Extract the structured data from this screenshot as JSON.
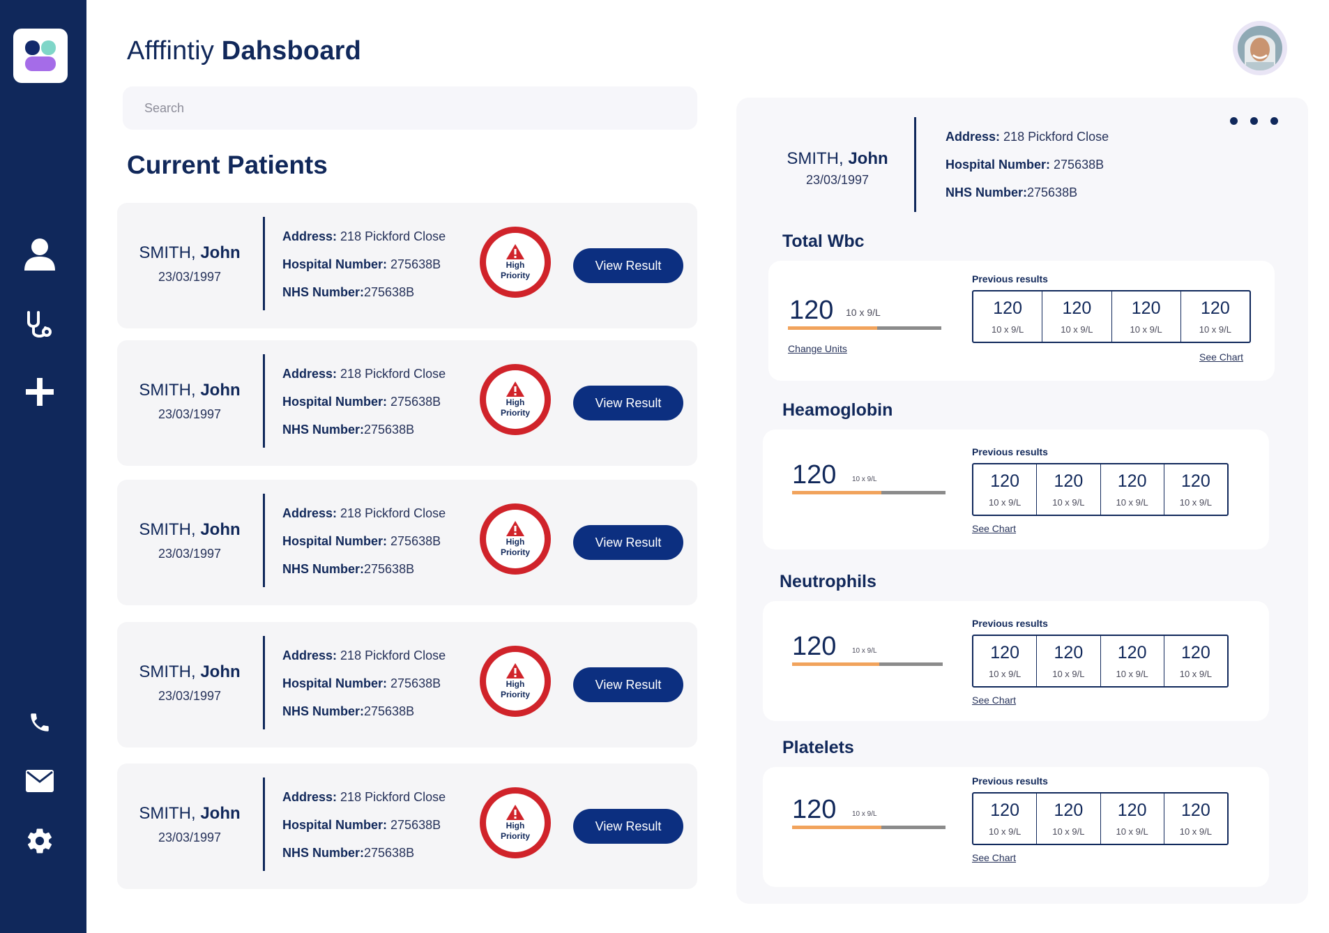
{
  "app": {
    "title_light": "Afffintiy",
    "title_bold": "Dahsboard"
  },
  "search": {
    "placeholder": "Search"
  },
  "patients_section": {
    "title": "Current Patients"
  },
  "patients": [
    {
      "last": "SMITH,",
      "first": "John",
      "dob": "23/03/1997",
      "address_label": "Address:",
      "address": "218 Pickford Close",
      "hospital_label": "Hospital Number:",
      "hospital": "275638B",
      "nhs_label": "NHS Number:",
      "nhs": "275638B",
      "priority_line1": "High",
      "priority_line2": "Priority",
      "button": "View Result"
    },
    {
      "last": "SMITH,",
      "first": "John",
      "dob": "23/03/1997",
      "address_label": "Address:",
      "address": "218 Pickford Close",
      "hospital_label": "Hospital Number:",
      "hospital": "275638B",
      "nhs_label": "NHS Number:",
      "nhs": "275638B",
      "priority_line1": "High",
      "priority_line2": "Priority",
      "button": "View Result"
    },
    {
      "last": "SMITH,",
      "first": "John",
      "dob": "23/03/1997",
      "address_label": "Address:",
      "address": "218 Pickford Close",
      "hospital_label": "Hospital Number:",
      "hospital": "275638B",
      "nhs_label": "NHS Number:",
      "nhs": "275638B",
      "priority_line1": "High",
      "priority_line2": "Priority",
      "button": "View Result"
    },
    {
      "last": "SMITH,",
      "first": "John",
      "dob": "23/03/1997",
      "address_label": "Address:",
      "address": "218 Pickford Close",
      "hospital_label": "Hospital Number:",
      "hospital": "275638B",
      "nhs_label": "NHS Number:",
      "nhs": "275638B",
      "priority_line1": "High",
      "priority_line2": "Priority",
      "button": "View Result"
    },
    {
      "last": "SMITH,",
      "first": "John",
      "dob": "23/03/1997",
      "address_label": "Address:",
      "address": "218 Pickford Close",
      "hospital_label": "Hospital Number:",
      "hospital": "275638B",
      "nhs_label": "NHS Number:",
      "nhs": "275638B",
      "priority_line1": "High",
      "priority_line2": "Priority",
      "button": "View Result"
    }
  ],
  "detail": {
    "last": "SMITH,",
    "first": "John",
    "dob": "23/03/1997",
    "address_label": "Address:",
    "address": "218 Pickford Close",
    "hospital_label": "Hospital Number:",
    "hospital": "275638B",
    "nhs_label": "NHS Number:",
    "nhs": "275638B"
  },
  "results": [
    {
      "title": "Total Wbc",
      "value": "120",
      "unit": "10 x 9/L",
      "level_fraction": 0.58,
      "prev_label": "Previous results",
      "previous": [
        {
          "value": "120",
          "unit": "10 x 9/L"
        },
        {
          "value": "120",
          "unit": "10 x 9/L"
        },
        {
          "value": "120",
          "unit": "10 x 9/L"
        },
        {
          "value": "120",
          "unit": "10 x 9/L"
        }
      ],
      "change_units": "Change Units",
      "see_chart": "See Chart"
    },
    {
      "title": "Heamoglobin",
      "value": "120",
      "unit": "10 x 9/L",
      "level_fraction": 0.58,
      "prev_label": "Previous results",
      "previous": [
        {
          "value": "120",
          "unit": "10 x 9/L"
        },
        {
          "value": "120",
          "unit": "10 x 9/L"
        },
        {
          "value": "120",
          "unit": "10 x 9/L"
        },
        {
          "value": "120",
          "unit": "10 x 9/L"
        }
      ],
      "see_chart": "See Chart"
    },
    {
      "title": "Neutrophils",
      "value": "120",
      "unit": "10 x 9/L",
      "level_fraction": 0.58,
      "prev_label": "Previous results",
      "previous": [
        {
          "value": "120",
          "unit": "10 x 9/L"
        },
        {
          "value": "120",
          "unit": "10 x 9/L"
        },
        {
          "value": "120",
          "unit": "10 x 9/L"
        },
        {
          "value": "120",
          "unit": "10 x 9/L"
        }
      ],
      "see_chart": "See Chart"
    },
    {
      "title": "Platelets",
      "value": "120",
      "unit": "10 x 9/L",
      "level_fraction": 0.58,
      "prev_label": "Previous results",
      "previous": [
        {
          "value": "120",
          "unit": "10 x 9/L"
        },
        {
          "value": "120",
          "unit": "10 x 9/L"
        },
        {
          "value": "120",
          "unit": "10 x 9/L"
        },
        {
          "value": "120",
          "unit": "10 x 9/L"
        }
      ],
      "see_chart": "See Chart"
    }
  ],
  "icons": {
    "sidebar": [
      "app-logo-icon",
      "user-icon",
      "stethoscope-icon",
      "plus-icon",
      "phone-icon",
      "mail-icon",
      "gear-icon"
    ],
    "priority": "warning-icon",
    "menu": "more-dots-icon"
  },
  "colors": {
    "sidebar": "#10285b",
    "primary_button": "#0c2f80",
    "priority_red": "#d0232a",
    "level_orange": "#f1a35c"
  }
}
